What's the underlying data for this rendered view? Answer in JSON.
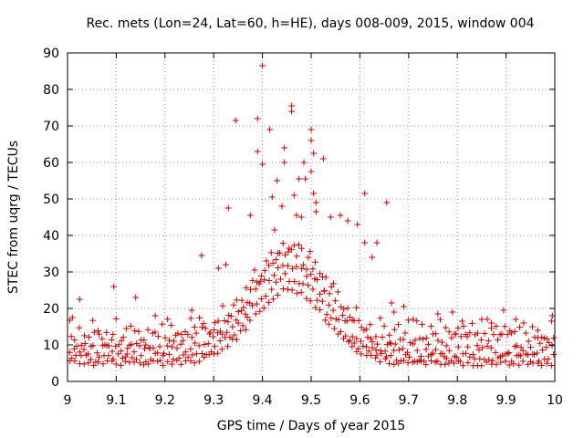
{
  "chart_data": {
    "type": "scatter",
    "title": "Rec. mets (Lon=24, Lat=60, h=HE), days 008-009, 2015, window 004",
    "xlabel": "GPS time / Days of year 2015",
    "ylabel": "STEC from uqrg / TECUs",
    "xlim": [
      9,
      10
    ],
    "ylim": [
      0,
      90
    ],
    "x_ticks": [
      9,
      9.1,
      9.2,
      9.3,
      9.4,
      9.5,
      9.6,
      9.7,
      9.8,
      9.9,
      10
    ],
    "x_tick_labels": [
      "9",
      "9.1",
      "9.2",
      "9.3",
      "9.4",
      "9.5",
      "9.6",
      "9.7",
      "9.8",
      "9.9",
      "10"
    ],
    "y_ticks": [
      0,
      10,
      20,
      30,
      40,
      50,
      60,
      70,
      80,
      90
    ],
    "y_tick_labels": [
      "0",
      "10",
      "20",
      "30",
      "40",
      "50",
      "60",
      "70",
      "80",
      "90"
    ],
    "grid": true,
    "marker": "+",
    "marker_color": "#cc0000",
    "outliers": [
      [
        9.01,
        17.5
      ],
      [
        9.025,
        22.5
      ],
      [
        9.095,
        26.0
      ],
      [
        9.14,
        23.0
      ],
      [
        9.18,
        18.0
      ],
      [
        9.255,
        19.5
      ],
      [
        9.275,
        34.5
      ],
      [
        9.31,
        31.0
      ],
      [
        9.325,
        32.0
      ],
      [
        9.33,
        47.5
      ],
      [
        9.345,
        71.5
      ],
      [
        9.375,
        45.5
      ],
      [
        9.39,
        72.0
      ],
      [
        9.39,
        63.0
      ],
      [
        9.4,
        86.5
      ],
      [
        9.4,
        59.5
      ],
      [
        9.415,
        69.0
      ],
      [
        9.42,
        50.5
      ],
      [
        9.425,
        41.5
      ],
      [
        9.43,
        55.0
      ],
      [
        9.44,
        48.0
      ],
      [
        9.445,
        64.0
      ],
      [
        9.445,
        60.0
      ],
      [
        9.46,
        75.5
      ],
      [
        9.46,
        74.0
      ],
      [
        9.465,
        51.0
      ],
      [
        9.47,
        45.5
      ],
      [
        9.475,
        55.5
      ],
      [
        9.48,
        45.0
      ],
      [
        9.485,
        60.0
      ],
      [
        9.488,
        55.5
      ],
      [
        9.5,
        69.0
      ],
      [
        9.5,
        66.0
      ],
      [
        9.5,
        57.5
      ],
      [
        9.505,
        62.5
      ],
      [
        9.505,
        51.5
      ],
      [
        9.51,
        49.0
      ],
      [
        9.51,
        46.5
      ],
      [
        9.525,
        61.0
      ],
      [
        9.54,
        45.0
      ],
      [
        9.56,
        45.5
      ],
      [
        9.575,
        44.0
      ],
      [
        9.595,
        43.0
      ],
      [
        9.61,
        51.5
      ],
      [
        9.61,
        38.0
      ],
      [
        9.625,
        34.0
      ],
      [
        9.635,
        38.0
      ],
      [
        9.655,
        49.0
      ],
      [
        9.665,
        21.5
      ],
      [
        9.67,
        19.0
      ],
      [
        9.69,
        20.5
      ],
      [
        9.76,
        18.5
      ],
      [
        9.79,
        19.0
      ],
      [
        9.81,
        16.5
      ],
      [
        9.85,
        17.0
      ],
      [
        9.87,
        16.0
      ],
      [
        9.895,
        19.5
      ],
      [
        9.92,
        17.0
      ],
      [
        9.965,
        14.0
      ],
      [
        9.995,
        18.0
      ]
    ]
  }
}
